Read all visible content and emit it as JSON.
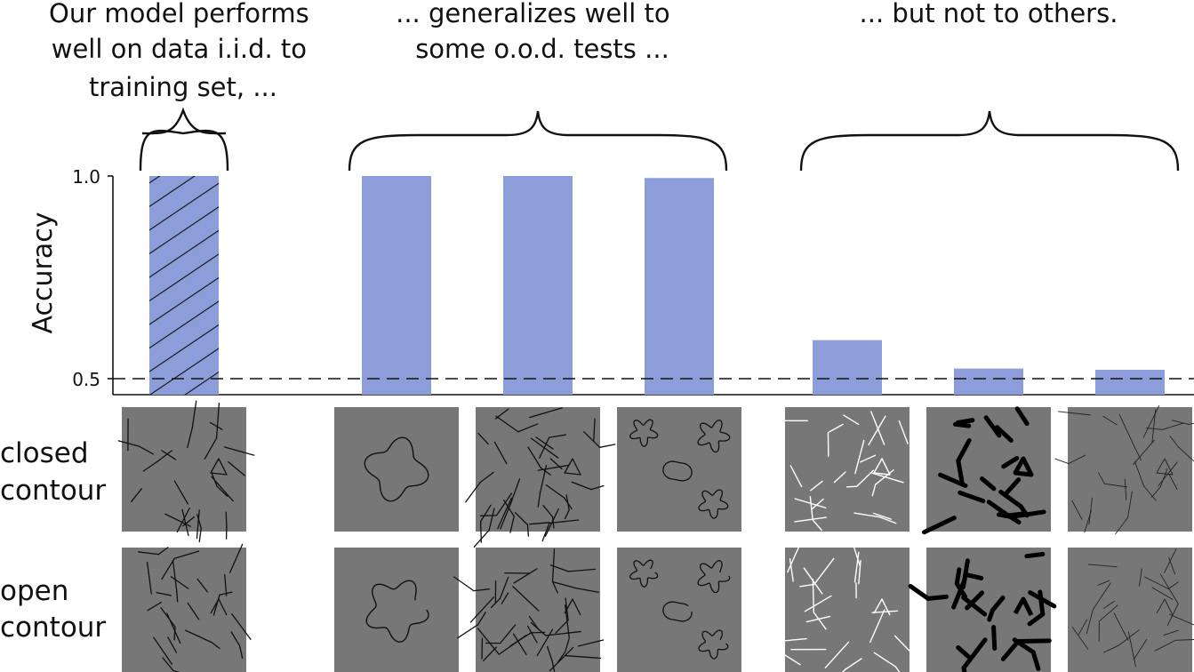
{
  "annotations": {
    "iid": [
      "Our model performs",
      "well on data i.i.d. to",
      "training set, ..."
    ],
    "ood_good": [
      "... generalizes well to",
      "some o.o.d. tests ..."
    ],
    "ood_bad": [
      "... but not to others."
    ]
  },
  "row_labels": {
    "closed": [
      "closed",
      "contour"
    ],
    "open": [
      "open",
      "contour"
    ]
  },
  "chart_data": {
    "type": "bar",
    "ylabel": "Accuracy",
    "yticks": [
      0.5,
      1.0
    ],
    "ytick_labels": [
      "0.5",
      "1.0"
    ],
    "ylim": [
      0.46,
      1.0
    ],
    "chance_line": 0.5,
    "bar_color": "#8c9dda",
    "values": [
      1.0,
      1.0,
      1.0,
      0.995,
      0.595,
      0.525,
      0.522
    ],
    "hatched": [
      true,
      false,
      false,
      false,
      false,
      false,
      false
    ]
  },
  "colors": {
    "bar": "#8c9dda",
    "panel_bg": "#777777",
    "text": "#111111"
  }
}
